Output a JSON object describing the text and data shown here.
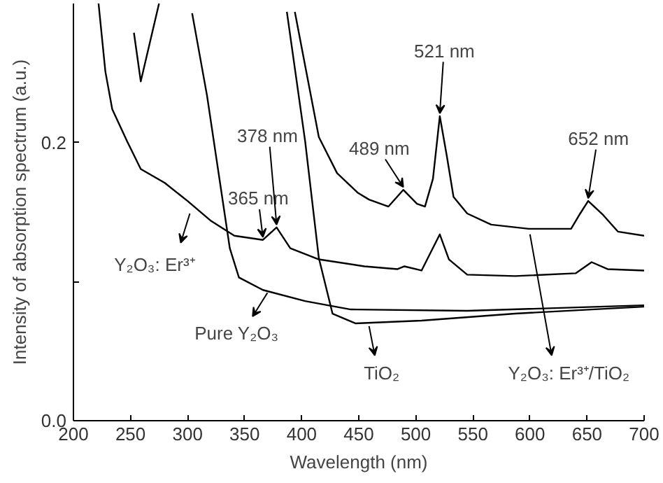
{
  "chart_data": {
    "type": "line",
    "xlabel": "Wavelength (nm)",
    "ylabel": "Intensity of absorption spectrum (a.u.)",
    "xlim": [
      200,
      700
    ],
    "ylim": [
      0,
      0.3
    ],
    "xticks": [
      200,
      250,
      300,
      350,
      400,
      450,
      500,
      550,
      600,
      650,
      700
    ],
    "yticks": [
      {
        "value": 0,
        "label": "0.0"
      },
      {
        "value": 0.1,
        "label": null
      },
      {
        "value": 0.2,
        "label": "0.2"
      }
    ],
    "grid": false,
    "legend": "bottom",
    "marker": "none",
    "line_style": "solid",
    "series": [
      {
        "name": "Y₂O₃: Er³⁺/TiO₂",
        "color": "#000000",
        "x": [
          394,
          404,
          415,
          431,
          449,
          459,
          476,
          489,
          501,
          508,
          515,
          521,
          527,
          533,
          545,
          566,
          599,
          636,
          644,
          651,
          664,
          677,
          700
        ],
        "values": [
          0.294,
          0.251,
          0.204,
          0.178,
          0.164,
          0.159,
          0.154,
          0.166,
          0.156,
          0.154,
          0.174,
          0.219,
          0.191,
          0.161,
          0.149,
          0.141,
          0.138,
          0.138,
          0.149,
          0.158,
          0.148,
          0.136,
          0.133
        ]
      },
      {
        "name": "Y₂O₃: Er³⁺",
        "color": "#000000",
        "x": [
          222,
          228,
          234,
          247,
          259,
          280,
          300,
          320,
          341,
          366,
          378,
          390,
          415,
          455,
          484,
          490,
          505,
          521,
          529,
          545,
          587,
          640,
          654,
          668,
          700
        ],
        "values": [
          0.3,
          0.251,
          0.224,
          0.201,
          0.181,
          0.171,
          0.158,
          0.144,
          0.133,
          0.13,
          0.139,
          0.124,
          0.116,
          0.111,
          0.109,
          0.111,
          0.108,
          0.134,
          0.116,
          0.105,
          0.104,
          0.106,
          0.114,
          0.109,
          0.108
        ]
      },
      {
        "name": "Pure Y₂O₃",
        "color": "#000000",
        "x": [
          304,
          317,
          329,
          337,
          345,
          366,
          403,
          443,
          545,
          700
        ],
        "values": [
          0.293,
          0.234,
          0.168,
          0.124,
          0.103,
          0.094,
          0.086,
          0.08,
          0.079,
          0.083
        ]
      },
      {
        "name": "TiO₂",
        "color": "#000000",
        "x": [
          387,
          403,
          415,
          427,
          447,
          505,
          587,
          700
        ],
        "values": [
          0.294,
          0.201,
          0.117,
          0.077,
          0.07,
          0.072,
          0.077,
          0.082
        ]
      },
      {
        "color": "#000000",
        "x": [
          253,
          259,
          275
        ],
        "values": [
          0.279,
          0.244,
          0.3
        ]
      }
    ],
    "annotations": [
      {
        "text": "365 nm",
        "x": 366,
        "y": 0.13
      },
      {
        "text": "378 nm",
        "x": 378,
        "y": 0.139
      },
      {
        "text": "489 nm",
        "x": 489,
        "y": 0.166
      },
      {
        "text": "521 nm",
        "x": 521,
        "y": 0.219
      },
      {
        "text": "652 nm",
        "x": 651,
        "y": 0.158
      }
    ]
  }
}
